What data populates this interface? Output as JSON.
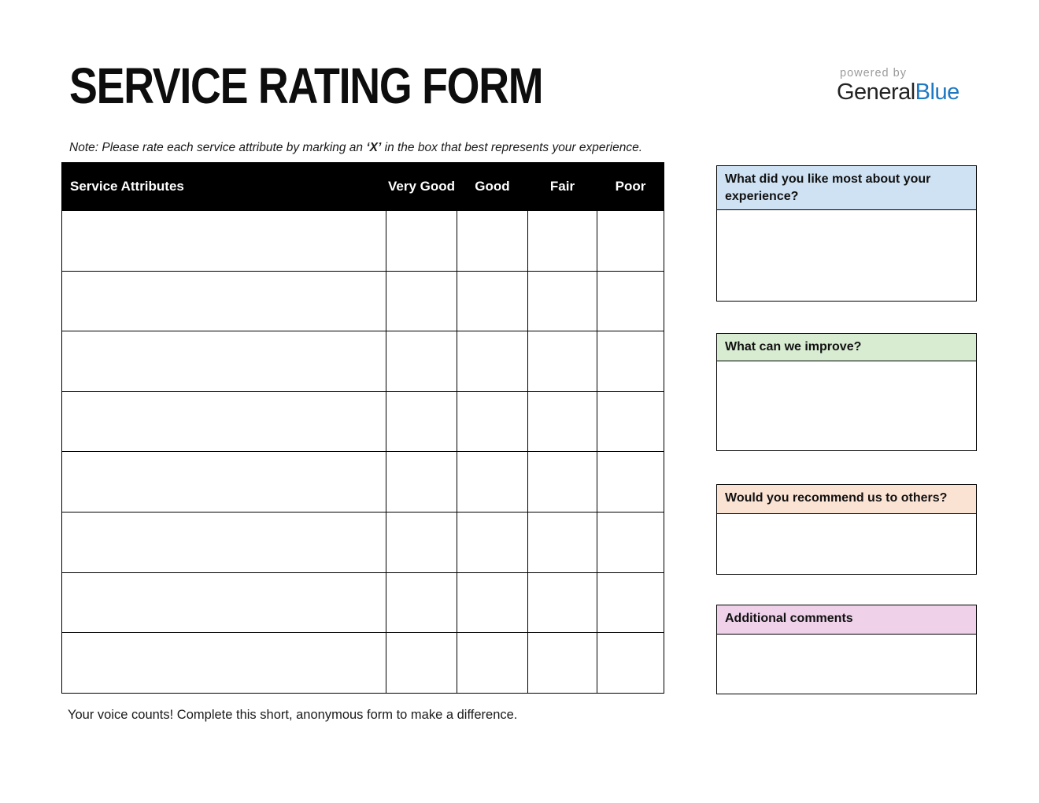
{
  "page": {
    "title": "SERVICE RATING FORM",
    "footer": "Your voice counts! Complete this short, anonymous form to make a difference."
  },
  "logo": {
    "powered_by": "powered by",
    "brand_general": "General",
    "brand_blue": "Blue",
    "brand_blue_color": "#1e78c2"
  },
  "note": {
    "prefix": "Note: Please rate each service attribute by marking an ",
    "mark": "‘X’",
    "suffix": " in the box that best represents your experience."
  },
  "rating_table": {
    "header_bg": "#000000",
    "header_text_color": "#ffffff",
    "columns": [
      "Service Attributes",
      "Very Good",
      "Good",
      "Fair",
      "Poor"
    ],
    "row_count": 8,
    "rows": [
      {
        "attribute": "",
        "very_good": "",
        "good": "",
        "fair": "",
        "poor": ""
      },
      {
        "attribute": "",
        "very_good": "",
        "good": "",
        "fair": "",
        "poor": ""
      },
      {
        "attribute": "",
        "very_good": "",
        "good": "",
        "fair": "",
        "poor": ""
      },
      {
        "attribute": "",
        "very_good": "",
        "good": "",
        "fair": "",
        "poor": ""
      },
      {
        "attribute": "",
        "very_good": "",
        "good": "",
        "fair": "",
        "poor": ""
      },
      {
        "attribute": "",
        "very_good": "",
        "good": "",
        "fair": "",
        "poor": ""
      },
      {
        "attribute": "",
        "very_good": "",
        "good": "",
        "fair": "",
        "poor": ""
      },
      {
        "attribute": "",
        "very_good": "",
        "good": "",
        "fair": "",
        "poor": ""
      }
    ]
  },
  "panels": [
    {
      "title": "What did you like most about your experience?",
      "color": "#cfe2f3",
      "answer": ""
    },
    {
      "title": "What can we improve?",
      "color": "#d8ecd2",
      "answer": ""
    },
    {
      "title": "Would you recommend us to others?",
      "color": "#fbe3d4",
      "answer": ""
    },
    {
      "title": "Additional comments",
      "color": "#efd2ea",
      "answer": ""
    }
  ]
}
